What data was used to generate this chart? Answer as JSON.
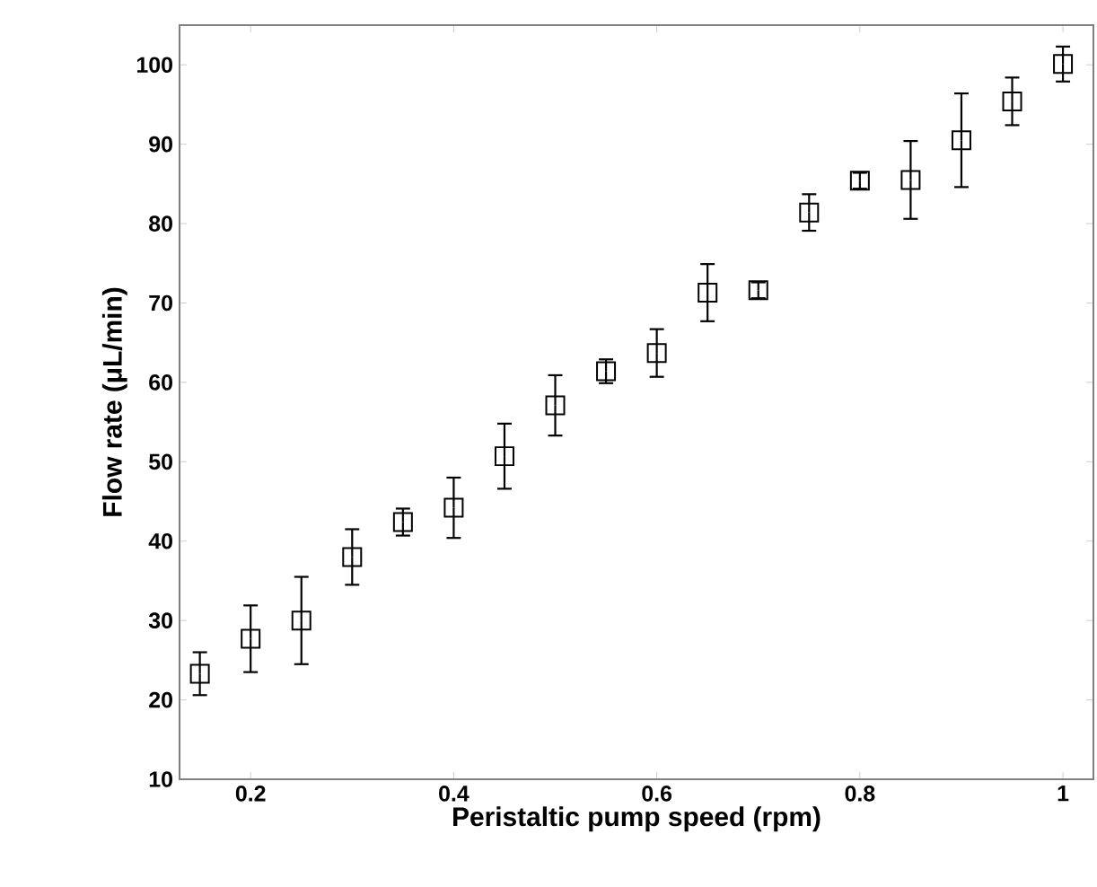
{
  "chart_data": {
    "type": "scatter",
    "xlabel": "Peristaltic pump speed (rpm)",
    "ylabel": "Flow rate (μL/min)",
    "x": [
      0.15,
      0.2,
      0.25,
      0.3,
      0.35,
      0.4,
      0.45,
      0.5,
      0.55,
      0.6,
      0.65,
      0.7,
      0.75,
      0.8,
      0.85,
      0.9,
      0.95,
      1.0
    ],
    "values": [
      23.3,
      27.7,
      30.0,
      38.0,
      42.4,
      44.2,
      50.7,
      57.1,
      61.4,
      63.7,
      71.3,
      71.6,
      81.4,
      85.4,
      85.5,
      90.5,
      95.4,
      100.1
    ],
    "errors": [
      2.7,
      4.2,
      5.5,
      3.5,
      1.7,
      3.8,
      4.1,
      3.8,
      1.5,
      3.0,
      3.6,
      1.0,
      2.3,
      1.0,
      4.9,
      5.9,
      3.0,
      2.2
    ],
    "color": "#000000",
    "marker": "square",
    "xlim": [
      0.13,
      1.03
    ],
    "ylim": [
      10,
      105
    ],
    "xticks": [
      0.2,
      0.4,
      0.6,
      0.8,
      1
    ],
    "yticks": [
      10,
      20,
      30,
      40,
      50,
      60,
      70,
      80,
      90,
      100
    ]
  }
}
